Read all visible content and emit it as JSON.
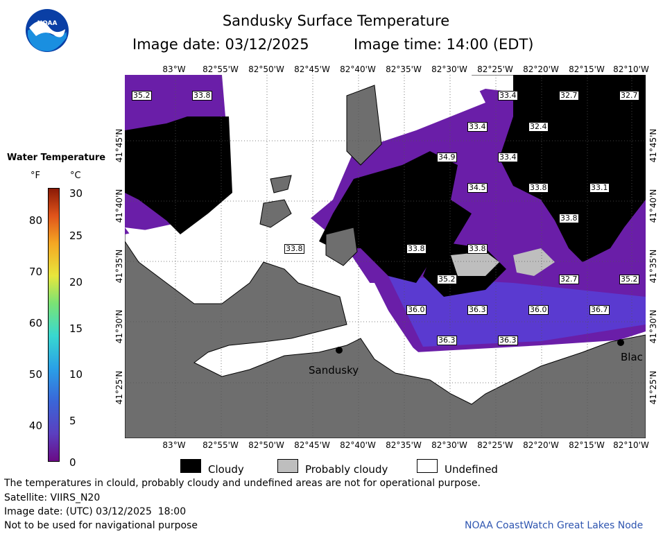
{
  "header": {
    "title": "Sandusky Surface Temperature",
    "image_date": "Image date: 03/12/2025",
    "image_time": "Image time: 14:00 (EDT)"
  },
  "logo": {
    "icon": "noaa-logo-icon",
    "text": "NOAA"
  },
  "legend": {
    "title": "Water Temperature",
    "unit_f": "°F",
    "unit_c": "°C",
    "ticks_f": [
      "80",
      "70",
      "60",
      "50",
      "40"
    ],
    "ticks_c": [
      "30",
      "25",
      "20",
      "15",
      "10",
      "5",
      "0"
    ]
  },
  "axes": {
    "lon_labels": [
      "83°W",
      "82°55'W",
      "82°50'W",
      "82°45'W",
      "82°40'W",
      "82°35'W",
      "82°30'W",
      "82°25'W",
      "82°20'W",
      "82°15'W",
      "82°10'W"
    ],
    "lat_labels": [
      "41°45'N",
      "41°40'N",
      "41°35'N",
      "41°30'N",
      "41°25'N"
    ]
  },
  "temperatures": [
    "35.2",
    "33.8",
    "33.4",
    "32.7",
    "32.7",
    "33.4",
    "32.4",
    "34.9",
    "33.4",
    "34.5",
    "33.8",
    "33.1",
    "33.8",
    "33.8",
    "33.8",
    "33.8",
    "35.2",
    "32.7",
    "35.2",
    "36.0",
    "36.3",
    "36.0",
    "36.7",
    "36.3",
    "36.3"
  ],
  "places": {
    "sandusky": "Sandusky",
    "blac": "Blac"
  },
  "key": {
    "cloudy": "Cloudy",
    "probably_cloudy": "Probably cloudy",
    "undefined": "Undefined"
  },
  "footer": {
    "disclaimer": "The temperatures in clould, probably cloudy and undefined areas are not for operational purpose.",
    "satellite": "Satellite: VIIRS_N20",
    "utc_date": "Image date: (UTC) 03/12/2025  18:00",
    "navigation": "Not to be used for navigational purpose",
    "credit": "NOAA CoastWatch Great Lakes Node"
  },
  "colors": {
    "land": "#6e6e6e",
    "cloud": "#000000",
    "probably_cloud": "#bebebe",
    "water_cold": "#6a1ea8"
  }
}
